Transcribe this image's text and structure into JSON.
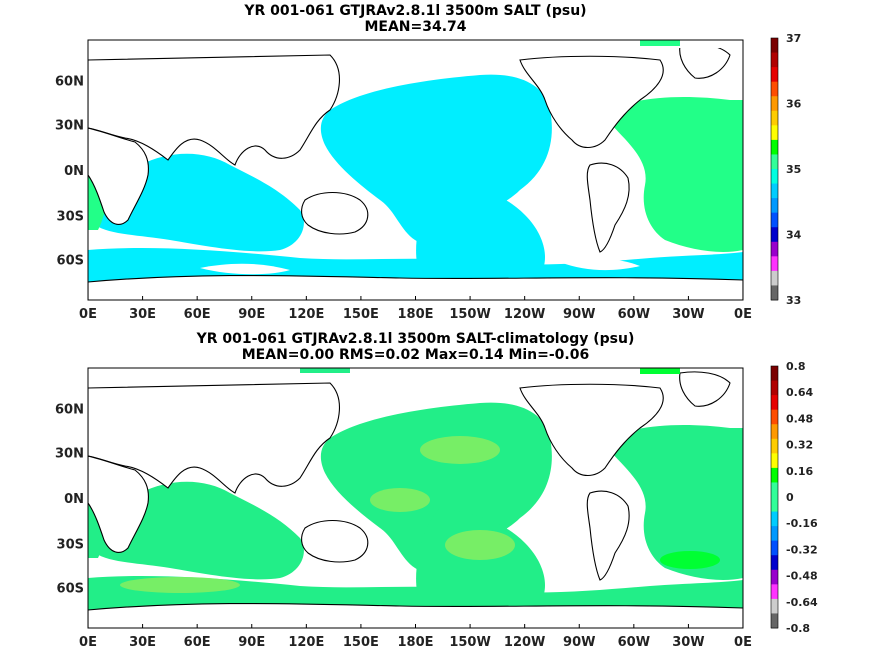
{
  "panels": [
    {
      "id": "top",
      "title": "YR 001-061 GTJRAv2.8.1l 3500m SALT (psu)",
      "subtitle": "MEAN=34.74",
      "colorbar_labels": [
        "37",
        "36",
        "35",
        "34",
        "33"
      ],
      "colorbar_colors": [
        "#7a0000",
        "#b00000",
        "#e60000",
        "#ff4d00",
        "#ff9900",
        "#ffcc00",
        "#ffff00",
        "#00ff00",
        "#33ff99",
        "#00ffe0",
        "#00ccff",
        "#0099ff",
        "#0050ff",
        "#0000cc",
        "#9900cc",
        "#ff33ff",
        "#cccccc",
        "#666666"
      ]
    },
    {
      "id": "bottom",
      "title": "YR 001-061 GTJRAv2.8.1l 3500m SALT-climatology (psu)",
      "subtitle": "MEAN=0.00   RMS=0.02   Max=0.14   Min=-0.06",
      "colorbar_labels": [
        "0.8",
        "0.64",
        "0.48",
        "0.32",
        "0.16",
        "0",
        "-0.16",
        "-0.32",
        "-0.48",
        "-0.64",
        "-0.8"
      ],
      "colorbar_colors": [
        "#7a0000",
        "#b00000",
        "#e60000",
        "#ff4d00",
        "#ff9900",
        "#ffcc00",
        "#ffff00",
        "#00ff00",
        "#33ff99",
        "#33ff99",
        "#00ccff",
        "#0099ff",
        "#0050ff",
        "#0000cc",
        "#9900cc",
        "#ff33ff",
        "#cccccc",
        "#666666"
      ]
    }
  ],
  "axes": {
    "x_labels": [
      "0E",
      "30E",
      "60E",
      "90E",
      "120E",
      "150E",
      "180E",
      "150W",
      "120W",
      "90W",
      "60W",
      "30W",
      "0E"
    ],
    "y_labels": [
      "60N",
      "30N",
      "0N",
      "30S",
      "60S"
    ]
  },
  "colors": {
    "top_fill": "#00eeff",
    "top_fill2": "#22ff88",
    "bottom_fill": "#22ee88",
    "bottom_fill2": "#77ee66",
    "land": "#ffffff",
    "coast": "#000000"
  }
}
